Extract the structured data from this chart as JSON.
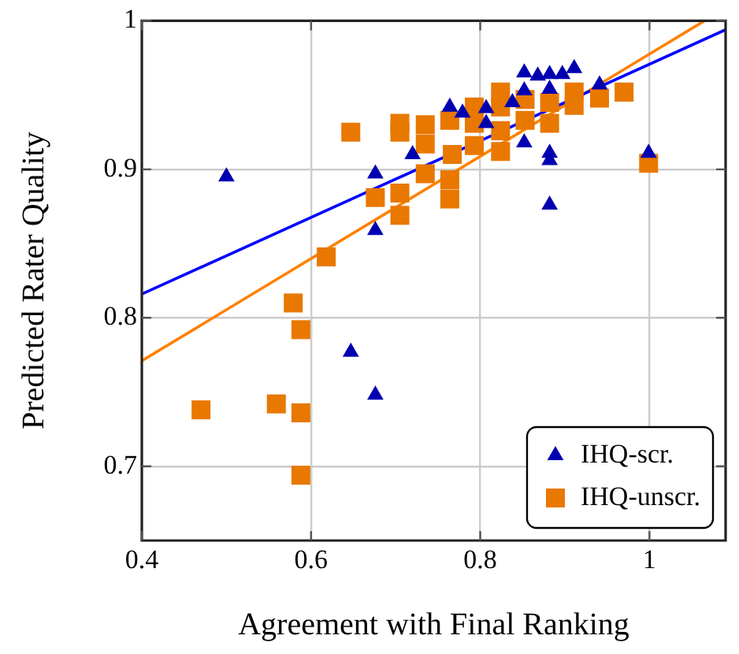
{
  "chart_data": {
    "type": "scatter",
    "xlabel": "Agreement with Final Ranking",
    "ylabel": "Predicted Rater Quality",
    "xlim": [
      0.4,
      1.09
    ],
    "ylim": [
      0.65,
      1
    ],
    "xticks": [
      0.4,
      0.6,
      0.8,
      1
    ],
    "yticks": [
      0.7,
      0.8,
      0.9,
      1
    ],
    "grid": true,
    "legend": "bottom right",
    "series": [
      {
        "name": "IHQ-scr.",
        "color": "#0000b0",
        "marker": "triangle",
        "x": [
          0.5,
          0.676,
          0.72,
          0.676,
          0.647,
          0.676,
          0.852,
          0.868,
          0.882,
          0.897,
          0.911,
          0.764,
          0.779,
          0.807,
          0.807,
          0.838,
          0.852,
          0.882,
          0.852,
          0.882,
          0.882,
          0.882,
          0.941,
          0.999
        ],
        "values": [
          0.895,
          0.897,
          0.91,
          0.859,
          0.777,
          0.748,
          0.965,
          0.963,
          0.964,
          0.964,
          0.968,
          0.942,
          0.938,
          0.941,
          0.931,
          0.945,
          0.953,
          0.954,
          0.918,
          0.911,
          0.906,
          0.876,
          0.957,
          0.911
        ]
      },
      {
        "name": "IHQ-unscr.",
        "color": "#e87800",
        "marker": "square",
        "x": [
          0.647,
          0.705,
          0.705,
          0.735,
          0.735,
          0.735,
          0.676,
          0.705,
          0.705,
          0.618,
          0.579,
          0.588,
          0.47,
          0.559,
          0.588,
          0.588,
          0.764,
          0.767,
          0.764,
          0.764,
          0.793,
          0.793,
          0.793,
          0.824,
          0.824,
          0.824,
          0.824,
          0.853,
          0.853,
          0.882,
          0.882,
          0.911,
          0.911,
          0.941,
          0.97,
          0.999
        ],
        "values": [
          0.925,
          0.931,
          0.925,
          0.93,
          0.917,
          0.897,
          0.881,
          0.884,
          0.869,
          0.841,
          0.81,
          0.792,
          0.738,
          0.742,
          0.736,
          0.694,
          0.933,
          0.91,
          0.893,
          0.88,
          0.942,
          0.931,
          0.916,
          0.952,
          0.942,
          0.926,
          0.912,
          0.947,
          0.933,
          0.945,
          0.931,
          0.952,
          0.943,
          0.948,
          0.952,
          0.904
        ]
      },
      {
        "type": "line",
        "color": "#0000ff",
        "marker": "none",
        "x": [
          0.4,
          1.09
        ],
        "values": [
          0.816,
          0.994
        ]
      },
      {
        "type": "line",
        "color": "#ff8000",
        "marker": "none",
        "x": [
          0.4,
          1.065
        ],
        "values": [
          0.771,
          1.0
        ]
      }
    ]
  }
}
